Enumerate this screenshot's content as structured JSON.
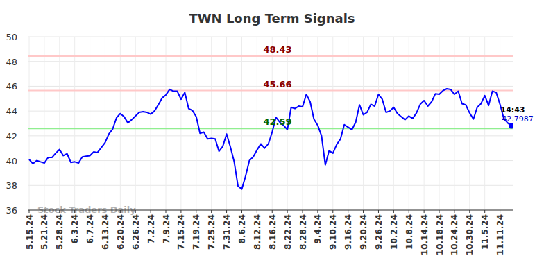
{
  "chart_data": {
    "type": "line",
    "title": "TWN Long Term Signals",
    "categories": [
      "5.15.24",
      null,
      null,
      null,
      "5.21.24",
      null,
      null,
      null,
      "5.28.24",
      null,
      null,
      null,
      "6.3.24",
      null,
      null,
      null,
      "6.7.24",
      null,
      null,
      null,
      "6.13.24",
      null,
      null,
      null,
      "6.20.24",
      null,
      null,
      null,
      "6.26.24",
      null,
      null,
      null,
      "7.2.24",
      null,
      null,
      null,
      "7.9.24",
      null,
      null,
      null,
      "7.15.24",
      null,
      null,
      null,
      "7.19.24",
      null,
      null,
      null,
      "7.25.24",
      null,
      null,
      null,
      "7.31.24",
      null,
      null,
      null,
      "8.6.24",
      null,
      null,
      null,
      "8.12.24",
      null,
      null,
      null,
      "8.16.24",
      null,
      null,
      null,
      "8.22.24",
      null,
      null,
      null,
      "8.28.24",
      null,
      null,
      null,
      "9.4.24",
      null,
      null,
      null,
      "9.10.24",
      null,
      null,
      null,
      "9.16.24",
      null,
      null,
      null,
      "9.20.24",
      null,
      null,
      null,
      "9.26.24",
      null,
      null,
      null,
      "10.2.24",
      null,
      null,
      null,
      "10.8.24",
      null,
      null,
      null,
      "10.14.24",
      null,
      null,
      null,
      "10.18.24",
      null,
      null,
      null,
      "10.24.24",
      null,
      null,
      null,
      "10.30.24",
      null,
      null,
      null,
      "11.5.24",
      null,
      null,
      null,
      "11.11.24",
      null,
      null,
      null
    ],
    "series": [
      {
        "name": "TWN",
        "color": "#0000ff",
        "values": [
          40.1,
          39.75,
          40.0,
          39.9,
          39.8,
          40.25,
          40.25,
          40.6,
          40.9,
          40.4,
          40.55,
          39.85,
          39.9,
          39.8,
          40.3,
          40.35,
          40.4,
          40.7,
          40.65,
          41.05,
          41.45,
          42.15,
          42.55,
          43.45,
          43.8,
          43.55,
          43.05,
          43.3,
          43.6,
          43.9,
          43.95,
          43.9,
          43.75,
          44.0,
          44.5,
          45.05,
          45.3,
          45.75,
          45.6,
          45.6,
          44.95,
          45.5,
          44.2,
          44.05,
          43.55,
          42.2,
          42.3,
          41.75,
          41.8,
          41.75,
          40.75,
          41.15,
          42.15,
          41.1,
          39.9,
          37.95,
          37.7,
          38.75,
          40.0,
          40.3,
          40.85,
          41.35,
          41.0,
          41.35,
          42.3,
          43.5,
          43.1,
          42.85,
          42.5,
          44.3,
          44.2,
          44.4,
          44.35,
          45.35,
          44.75,
          43.35,
          42.85,
          42.0,
          39.65,
          40.8,
          40.6,
          41.3,
          41.75,
          42.9,
          42.7,
          42.5,
          43.1,
          44.5,
          43.7,
          43.9,
          44.55,
          44.4,
          45.35,
          44.95,
          43.9,
          44.0,
          44.3,
          43.8,
          43.55,
          43.3,
          43.6,
          43.4,
          43.85,
          44.55,
          44.85,
          44.4,
          44.75,
          45.4,
          45.35,
          45.65,
          45.8,
          45.75,
          45.35,
          45.6,
          44.6,
          44.5,
          43.85,
          43.35,
          44.3,
          44.6,
          45.25,
          44.45,
          45.6,
          45.5,
          44.55,
          43.4,
          43.05,
          42.7987
        ]
      }
    ],
    "ylim": [
      36,
      50
    ],
    "yticks": [
      36,
      38,
      40,
      42,
      44,
      46,
      48,
      50
    ],
    "grid": true,
    "signals": [
      {
        "label": "48.43",
        "value": 48.43,
        "color": "#ffc8c8",
        "label_color": "#8b0000"
      },
      {
        "label": "45.66",
        "value": 45.66,
        "color": "#ffc8c8",
        "label_color": "#8b0000"
      },
      {
        "label": "42.59",
        "value": 42.59,
        "color": "#90ee90",
        "label_color": "#006400"
      }
    ],
    "last_point": {
      "time": "14:43",
      "value": 42.7987
    },
    "watermark": "Stock Traders Daily"
  }
}
